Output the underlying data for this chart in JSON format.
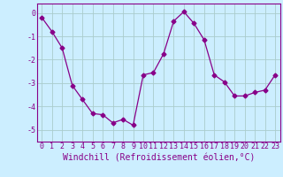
{
  "x": [
    0,
    1,
    2,
    3,
    4,
    5,
    6,
    7,
    8,
    9,
    10,
    11,
    12,
    13,
    14,
    15,
    16,
    17,
    18,
    19,
    20,
    21,
    22,
    23
  ],
  "y": [
    -0.2,
    -0.8,
    -1.5,
    -3.1,
    -3.7,
    -4.3,
    -4.35,
    -4.7,
    -4.55,
    -4.8,
    -2.65,
    -2.55,
    -1.75,
    -0.35,
    0.05,
    -0.45,
    -1.15,
    -2.65,
    -2.95,
    -3.55,
    -3.55,
    -3.4,
    -3.3,
    -2.65
  ],
  "line_color": "#880088",
  "marker": "D",
  "marker_size": 2.5,
  "bg_color": "#cceeff",
  "grid_color": "#aacccc",
  "xlabel": "Windchill (Refroidissement éolien,°C)",
  "xlabel_fontsize": 7,
  "tick_fontsize": 6,
  "ylim": [
    -5.5,
    0.4
  ],
  "xlim": [
    -0.5,
    23.5
  ],
  "yticks": [
    0,
    -1,
    -2,
    -3,
    -4,
    -5
  ],
  "xticks": [
    0,
    1,
    2,
    3,
    4,
    5,
    6,
    7,
    8,
    9,
    10,
    11,
    12,
    13,
    14,
    15,
    16,
    17,
    18,
    19,
    20,
    21,
    22,
    23
  ]
}
